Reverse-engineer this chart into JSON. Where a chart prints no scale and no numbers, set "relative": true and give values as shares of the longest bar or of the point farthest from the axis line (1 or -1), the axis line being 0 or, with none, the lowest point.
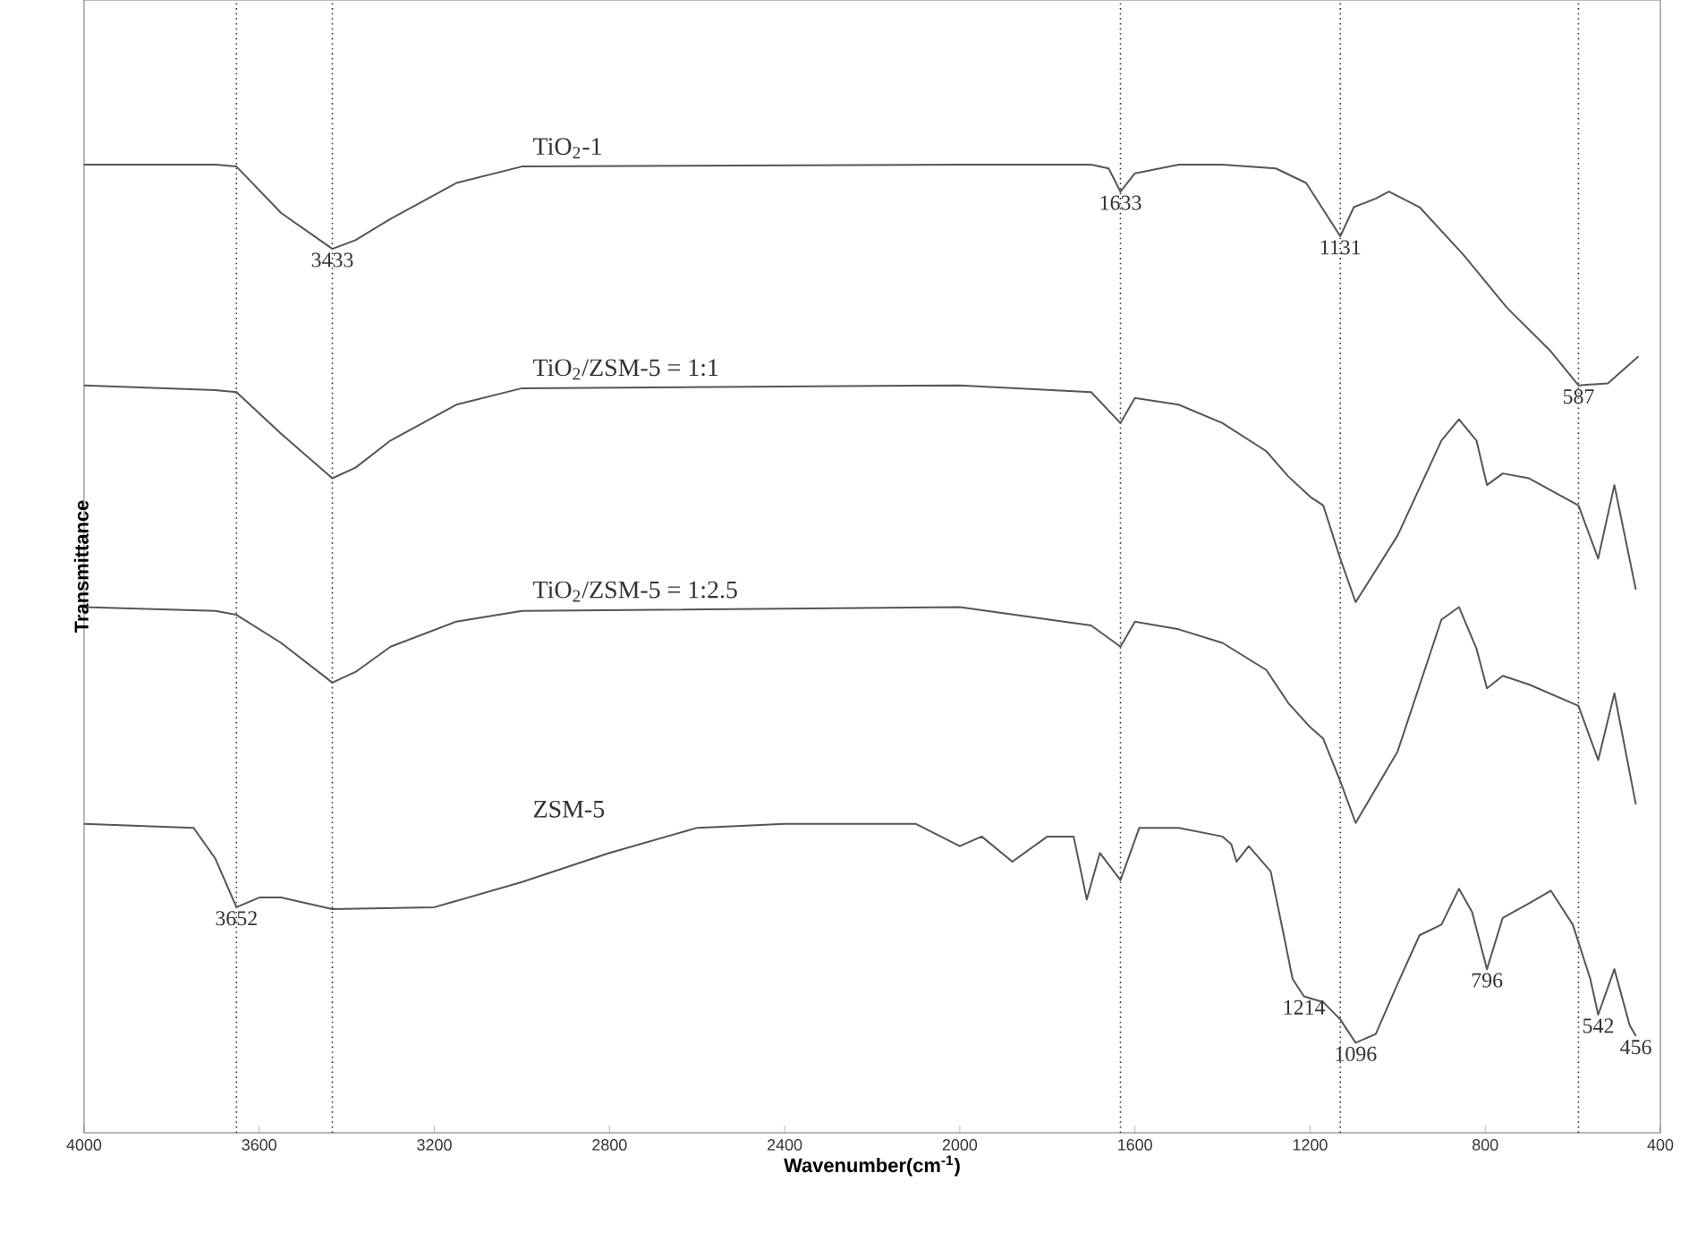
{
  "chart_data": {
    "type": "line",
    "relative": true,
    "xlabel": "Wavenumber(cm$^{-1}$)",
    "ylabel": "Transmittance",
    "xlim": [
      4000,
      400
    ],
    "xticks": [
      4000,
      3600,
      3200,
      2800,
      2400,
      2000,
      1600,
      1200,
      800,
      400
    ],
    "marker": "none",
    "series": [
      {
        "name": "TiO$_{2}$-1",
        "color": "#555555",
        "x": [
          4000,
          3700,
          3652,
          3550,
          3433,
          3380,
          3300,
          3150,
          3000,
          2000,
          1700,
          1660,
          1633,
          1600,
          1500,
          1400,
          1278,
          1209,
          1131,
          1100,
          1050,
          1020,
          950,
          850,
          750,
          650,
          587,
          520,
          450
        ],
        "values": [
          1.0,
          1.0,
          0.998,
          0.95,
          0.913,
          0.922,
          0.944,
          0.981,
          0.998,
          1.0,
          1.0,
          0.996,
          0.972,
          0.991,
          1.0,
          1.0,
          0.996,
          0.981,
          0.926,
          0.956,
          0.965,
          0.972,
          0.956,
          0.907,
          0.852,
          0.807,
          0.772,
          0.774,
          0.802
        ]
      },
      {
        "name": "TiO$_{2}$/ZSM-5 = 1:1",
        "color": "#555555",
        "x": [
          4000,
          3700,
          3652,
          3550,
          3433,
          3380,
          3300,
          3150,
          3000,
          2000,
          1700,
          1633,
          1600,
          1500,
          1400,
          1300,
          1250,
          1200,
          1170,
          1131,
          1096,
          1000,
          900,
          860,
          820,
          796,
          760,
          700,
          587,
          542,
          505,
          456
        ],
        "values": [
          0.772,
          0.767,
          0.765,
          0.722,
          0.676,
          0.687,
          0.715,
          0.752,
          0.769,
          0.772,
          0.765,
          0.733,
          0.759,
          0.752,
          0.733,
          0.704,
          0.678,
          0.657,
          0.648,
          0.593,
          0.548,
          0.617,
          0.715,
          0.737,
          0.715,
          0.669,
          0.681,
          0.676,
          0.648,
          0.593,
          0.669,
          0.561
        ]
      },
      {
        "name": "TiO$_{2}$/ZSM-5 = 1:2.5",
        "color": "#555555",
        "x": [
          4000,
          3700,
          3652,
          3550,
          3433,
          3380,
          3300,
          3150,
          3000,
          2000,
          1700,
          1633,
          1600,
          1500,
          1400,
          1300,
          1250,
          1200,
          1170,
          1131,
          1096,
          1000,
          900,
          860,
          820,
          796,
          760,
          700,
          587,
          542,
          505,
          456
        ],
        "values": [
          0.543,
          0.539,
          0.535,
          0.506,
          0.465,
          0.476,
          0.502,
          0.528,
          0.539,
          0.543,
          0.524,
          0.502,
          0.528,
          0.52,
          0.506,
          0.478,
          0.444,
          0.419,
          0.407,
          0.363,
          0.32,
          0.394,
          0.53,
          0.543,
          0.5,
          0.459,
          0.472,
          0.463,
          0.441,
          0.385,
          0.454,
          0.339
        ]
      },
      {
        "name": "ZSM-5",
        "color": "#555555",
        "x": [
          4000,
          3750,
          3700,
          3652,
          3600,
          3550,
          3433,
          3200,
          3000,
          2800,
          2600,
          2400,
          2100,
          2000,
          1950,
          1880,
          1800,
          1740,
          1710,
          1680,
          1633,
          1590,
          1500,
          1400,
          1380,
          1368,
          1340,
          1290,
          1260,
          1240,
          1214,
          1170,
          1131,
          1096,
          1050,
          1000,
          950,
          900,
          860,
          830,
          796,
          760,
          700,
          650,
          600,
          560,
          542,
          505,
          470,
          456
        ],
        "values": [
          0.319,
          0.315,
          0.283,
          0.233,
          0.243,
          0.243,
          0.231,
          0.233,
          0.259,
          0.289,
          0.315,
          0.319,
          0.319,
          0.296,
          0.306,
          0.28,
          0.306,
          0.306,
          0.241,
          0.289,
          0.261,
          0.315,
          0.315,
          0.306,
          0.298,
          0.28,
          0.296,
          0.27,
          0.204,
          0.159,
          0.141,
          0.135,
          0.117,
          0.093,
          0.102,
          0.154,
          0.204,
          0.215,
          0.252,
          0.228,
          0.169,
          0.222,
          0.237,
          0.25,
          0.215,
          0.159,
          0.122,
          0.169,
          0.111,
          0.1
        ]
      }
    ],
    "ref_lines": [
      {
        "axis": "x",
        "value": 3652,
        "line_style": "dotted",
        "color": "#333333"
      },
      {
        "axis": "x",
        "value": 3433,
        "line_style": "dotted",
        "color": "#333333"
      },
      {
        "axis": "x",
        "value": 1633,
        "line_style": "dotted",
        "color": "#333333"
      },
      {
        "axis": "x",
        "value": 1131,
        "line_style": "dotted",
        "color": "#333333"
      },
      {
        "axis": "x",
        "value": 587,
        "line_style": "dotted",
        "color": "#333333"
      }
    ],
    "annotations": [
      {
        "text": "3433",
        "x": 3433,
        "y": 0.913
      },
      {
        "text": "1633",
        "x": 1633,
        "y": 0.972
      },
      {
        "text": "1131",
        "x": 1131,
        "y": 0.926
      },
      {
        "text": "587",
        "x": 587,
        "y": 0.772
      },
      {
        "text": "3652",
        "x": 3652,
        "y": 0.233
      },
      {
        "text": "1214",
        "x": 1214,
        "y": 0.141
      },
      {
        "text": "1096",
        "x": 1096,
        "y": 0.093
      },
      {
        "text": "796",
        "x": 796,
        "y": 0.169
      },
      {
        "text": "542",
        "x": 542,
        "y": 0.122
      },
      {
        "text": "456",
        "x": 456,
        "y": 0.1
      }
    ]
  }
}
